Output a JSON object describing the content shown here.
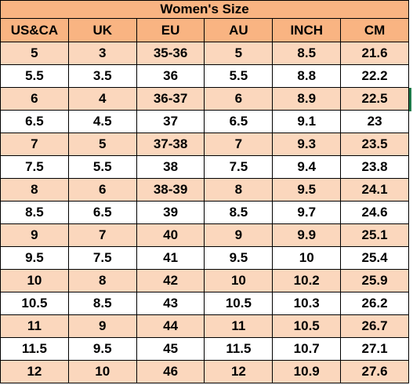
{
  "table": {
    "title": "Women's Size",
    "columns": [
      "US&CA",
      "UK",
      "EU",
      "AU",
      "INCH",
      "CM"
    ],
    "rows": [
      [
        "5",
        "3",
        "35-36",
        "5",
        "8.5",
        "21.6"
      ],
      [
        "5.5",
        "3.5",
        "36",
        "5.5",
        "8.8",
        "22.2"
      ],
      [
        "6",
        "4",
        "36-37",
        "6",
        "8.9",
        "22.5"
      ],
      [
        "6.5",
        "4.5",
        "37",
        "6.5",
        "9.1",
        "23"
      ],
      [
        "7",
        "5",
        "37-38",
        "7",
        "9.3",
        "23.5"
      ],
      [
        "7.5",
        "5.5",
        "38",
        "7.5",
        "9.4",
        "23.8"
      ],
      [
        "8",
        "6",
        "38-39",
        "8",
        "9.5",
        "24.1"
      ],
      [
        "8.5",
        "6.5",
        "39",
        "8.5",
        "9.7",
        "24.6"
      ],
      [
        "9",
        "7",
        "40",
        "9",
        "9.9",
        "25.1"
      ],
      [
        "9.5",
        "7.5",
        "41",
        "9.5",
        "10",
        "25.4"
      ],
      [
        "10",
        "8",
        "42",
        "10",
        "10.2",
        "25.9"
      ],
      [
        "10.5",
        "8.5",
        "43",
        "10.5",
        "10.3",
        "26.2"
      ],
      [
        "11",
        "9",
        "44",
        "11",
        "10.5",
        "26.7"
      ],
      [
        "11.5",
        "9.5",
        "45",
        "11.5",
        "10.7",
        "27.1"
      ],
      [
        "12",
        "10",
        "46",
        "12",
        "10.9",
        "27.6"
      ]
    ]
  },
  "colors": {
    "header": "#f9b482",
    "stripe": "#fbd7bd",
    "plain": "#ffffff",
    "border": "#000000",
    "edge_mark": "#1e7a4b"
  }
}
